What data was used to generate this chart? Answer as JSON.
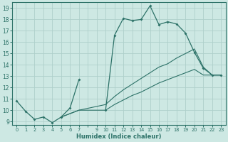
{
  "xlabel": "Humidex (Indice chaleur)",
  "bg_color": "#cde8e3",
  "grid_color": "#aed0cb",
  "line_color": "#2d7268",
  "xlim": [
    -0.5,
    23.5
  ],
  "ylim": [
    8.7,
    19.5
  ],
  "yticks": [
    9,
    10,
    11,
    12,
    13,
    14,
    15,
    16,
    17,
    18,
    19
  ],
  "xtick_labels": [
    "0",
    "1",
    "2",
    "3",
    "4",
    "5",
    "6",
    "7",
    "9",
    "10",
    "11",
    "12",
    "13",
    "14",
    "15",
    "16",
    "17",
    "18",
    "19",
    "20",
    "21",
    "22",
    "23"
  ],
  "main_curve_x": [
    0,
    1,
    2,
    3,
    4,
    5,
    6,
    7,
    10,
    11,
    12,
    13,
    14,
    15,
    16,
    17,
    18,
    19,
    20,
    21,
    22,
    23
  ],
  "main_curve_y": [
    10.8,
    9.9,
    9.2,
    9.4,
    8.9,
    9.4,
    10.2,
    12.7,
    10.0,
    16.6,
    18.1,
    17.9,
    18.0,
    19.2,
    17.55,
    17.8,
    17.6,
    16.8,
    15.1,
    13.7,
    13.1,
    13.1
  ],
  "lower_line_x": [
    5,
    7,
    10,
    11,
    12,
    13,
    14,
    15,
    16,
    17,
    18,
    19,
    20,
    21,
    22,
    23
  ],
  "lower_line_y": [
    9.4,
    10.0,
    10.0,
    10.5,
    10.9,
    11.3,
    11.6,
    12.0,
    12.4,
    12.7,
    13.0,
    13.3,
    13.6,
    13.1,
    13.1,
    13.1
  ],
  "upper_line_x": [
    5,
    7,
    10,
    11,
    12,
    13,
    14,
    15,
    16,
    17,
    18,
    19,
    20,
    21,
    22,
    23
  ],
  "upper_line_y": [
    9.4,
    10.0,
    10.5,
    11.2,
    11.8,
    12.3,
    12.8,
    13.3,
    13.8,
    14.1,
    14.6,
    15.0,
    15.4,
    13.8,
    13.1,
    13.1
  ]
}
